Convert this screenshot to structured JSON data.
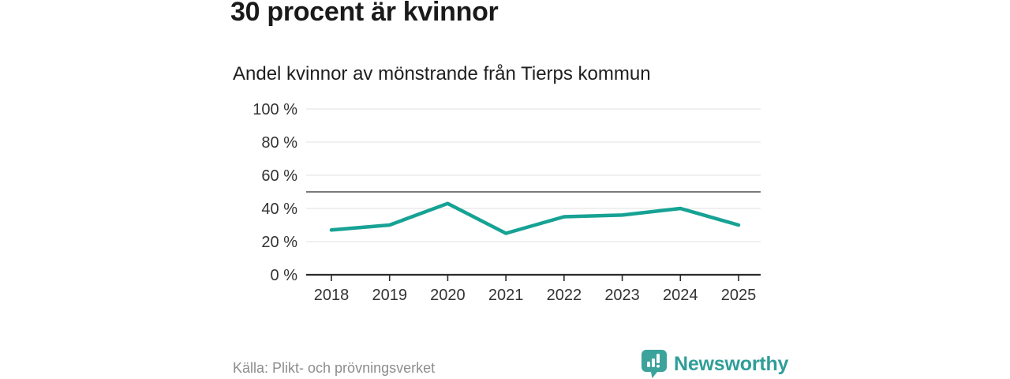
{
  "header": {
    "title": "30 procent är kvinnor",
    "subtitle": "Andel kvinnor av mönstrande från Tierps kommun"
  },
  "chart_data": {
    "type": "line",
    "title": "30 procent är kvinnor",
    "subtitle": "Andel kvinnor av mönstrande från Tierps kommun",
    "categories": [
      "2018",
      "2019",
      "2020",
      "2021",
      "2022",
      "2023",
      "2024",
      "2025"
    ],
    "series": [
      {
        "name": "Andel kvinnor av mönstrande",
        "values": [
          27,
          30,
          43,
          25,
          35,
          36,
          40,
          30
        ]
      }
    ],
    "ylim": [
      0,
      100
    ],
    "yticks": [
      0,
      20,
      40,
      60,
      80,
      100
    ],
    "ytick_labels": [
      "0 %",
      "20 %",
      "40 %",
      "60 %",
      "80 %",
      "100 %"
    ],
    "reference_line": {
      "value": 50
    },
    "grid": "horizontal",
    "legend": "none",
    "colors": {
      "line": "#16a294",
      "reference": "#4f4f4f",
      "grid": "#e0e0e0",
      "axis": "#2b2b2b",
      "tick_label": "#333333",
      "brand": "#2f9e98",
      "source": "#8d8d8d"
    }
  },
  "footer": {
    "source": "Källa: Plikt- och prövningsverket",
    "brand": "Newsworthy"
  }
}
